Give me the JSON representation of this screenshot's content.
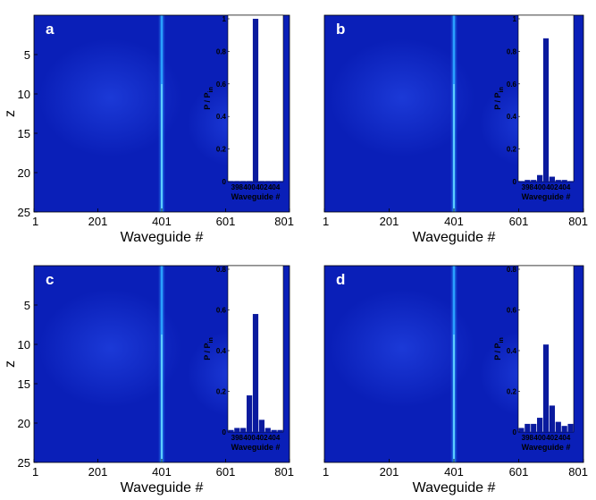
{
  "chart_data": [
    {
      "type": "heatmap",
      "panel": "a",
      "xlabel": "Waveguide #",
      "ylabel": "z",
      "xticks": [
        "1",
        "201",
        "401",
        "601",
        "801"
      ],
      "yticks": [
        "5",
        "10",
        "15",
        "20",
        "25"
      ],
      "inset": {
        "type": "bar",
        "xlabel": "Waveguide #",
        "ylabel": "P / P",
        "ylabel_sub": "in",
        "xticks": [
          "398",
          "400",
          "402",
          "404"
        ],
        "yticks": [
          "0",
          "0.2",
          "0.4",
          "0.6",
          "0.8",
          "1"
        ],
        "ylim": [
          0,
          1
        ],
        "categories": [
          397,
          398,
          399,
          400,
          401,
          402,
          403,
          404,
          405
        ],
        "values": [
          0,
          0,
          0,
          0,
          1.0,
          0,
          0,
          0,
          0
        ]
      }
    },
    {
      "type": "heatmap",
      "panel": "b",
      "xlabel": "Waveguide #",
      "ylabel": "",
      "xticks": [
        "1",
        "201",
        "401",
        "601",
        "801"
      ],
      "yticks": [],
      "inset": {
        "type": "bar",
        "xlabel": "Waveguide #",
        "ylabel": "P / P",
        "ylabel_sub": "in",
        "xticks": [
          "398",
          "400",
          "402",
          "404"
        ],
        "yticks": [
          "0",
          "0.2",
          "0.4",
          "0.6",
          "0.8",
          "1"
        ],
        "ylim": [
          0,
          1
        ],
        "categories": [
          397,
          398,
          399,
          400,
          401,
          402,
          403,
          404,
          405
        ],
        "values": [
          0.0,
          0.01,
          0.01,
          0.04,
          0.88,
          0.03,
          0.01,
          0.01,
          0.0
        ]
      }
    },
    {
      "type": "heatmap",
      "panel": "c",
      "xlabel": "Waveguide #",
      "ylabel": "z",
      "xticks": [
        "1",
        "201",
        "401",
        "601",
        "801"
      ],
      "yticks": [
        "5",
        "10",
        "15",
        "20",
        "25"
      ],
      "inset": {
        "type": "bar",
        "xlabel": "Waveguide #",
        "ylabel": "P / P",
        "ylabel_sub": "in",
        "xticks": [
          "398",
          "400",
          "402",
          "404"
        ],
        "yticks": [
          "0",
          "0.2",
          "0.4",
          "0.6",
          "0.8"
        ],
        "ylim": [
          0,
          0.8
        ],
        "categories": [
          397,
          398,
          399,
          400,
          401,
          402,
          403,
          404,
          405
        ],
        "values": [
          0.01,
          0.02,
          0.02,
          0.18,
          0.58,
          0.06,
          0.02,
          0.01,
          0.01
        ]
      }
    },
    {
      "type": "heatmap",
      "panel": "d",
      "xlabel": "Waveguide #",
      "ylabel": "",
      "xticks": [
        "1",
        "201",
        "401",
        "601",
        "801"
      ],
      "yticks": [],
      "inset": {
        "type": "bar",
        "xlabel": "Waveguide #",
        "ylabel": "P / P",
        "ylabel_sub": "in",
        "xticks": [
          "398",
          "400",
          "402",
          "404"
        ],
        "yticks": [
          "0",
          "0.2",
          "0.4",
          "0.6",
          "0.8"
        ],
        "ylim": [
          0,
          0.8
        ],
        "categories": [
          397,
          398,
          399,
          400,
          401,
          402,
          403,
          404,
          405
        ],
        "values": [
          0.02,
          0.04,
          0.04,
          0.07,
          0.43,
          0.13,
          0.05,
          0.03,
          0.04
        ]
      }
    }
  ],
  "colors": {
    "heatmap_bg": "#0a1fb8",
    "heatmap_glow": "#1838e0",
    "beam_core": "#7fe8ff",
    "beam_mid": "#2aa0ff",
    "bar_fill": "#0a1a9e",
    "inset_bg": "#ffffff"
  }
}
